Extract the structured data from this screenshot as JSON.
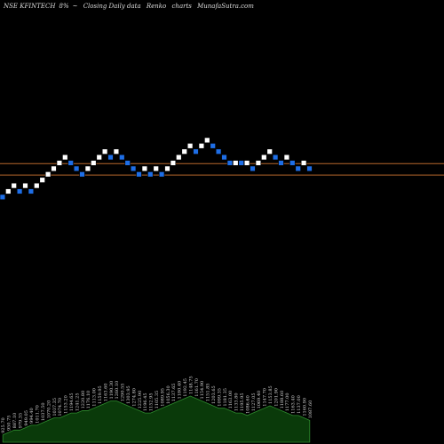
{
  "header": {
    "symbol": "NSE KFINTECH",
    "change": "8%",
    "arrow": "~",
    "series_label": "Closing Daily data",
    "chart_kind": "Renko",
    "suffix": "charts",
    "site": "MunafaSutra.com"
  },
  "colors": {
    "background": "#000000",
    "up_brick": "#ffffff",
    "down_brick": "#1e6ee6",
    "reference_line": "#b8682c",
    "volume_fill": "#0a3a0a",
    "volume_stroke": "#2e8b2e",
    "label_color": "#d2d2d2"
  },
  "chart_data": {
    "type": "renko",
    "bricks": [
      {
        "level": 0,
        "dir": "down"
      },
      {
        "level": 1,
        "dir": "up"
      },
      {
        "level": 2,
        "dir": "up"
      },
      {
        "level": 1,
        "dir": "down"
      },
      {
        "level": 2,
        "dir": "up"
      },
      {
        "level": 1,
        "dir": "down"
      },
      {
        "level": 2,
        "dir": "up"
      },
      {
        "level": 3,
        "dir": "up"
      },
      {
        "level": 4,
        "dir": "up"
      },
      {
        "level": 5,
        "dir": "up"
      },
      {
        "level": 6,
        "dir": "up"
      },
      {
        "level": 7,
        "dir": "up"
      },
      {
        "level": 6,
        "dir": "down"
      },
      {
        "level": 5,
        "dir": "down"
      },
      {
        "level": 4,
        "dir": "down"
      },
      {
        "level": 5,
        "dir": "up"
      },
      {
        "level": 6,
        "dir": "up"
      },
      {
        "level": 7,
        "dir": "up"
      },
      {
        "level": 8,
        "dir": "up"
      },
      {
        "level": 7,
        "dir": "down"
      },
      {
        "level": 8,
        "dir": "up"
      },
      {
        "level": 7,
        "dir": "down"
      },
      {
        "level": 6,
        "dir": "down"
      },
      {
        "level": 5,
        "dir": "down"
      },
      {
        "level": 4,
        "dir": "down"
      },
      {
        "level": 5,
        "dir": "up"
      },
      {
        "level": 4,
        "dir": "down"
      },
      {
        "level": 5,
        "dir": "up"
      },
      {
        "level": 4,
        "dir": "down"
      },
      {
        "level": 5,
        "dir": "up"
      },
      {
        "level": 6,
        "dir": "up"
      },
      {
        "level": 7,
        "dir": "up"
      },
      {
        "level": 8,
        "dir": "up"
      },
      {
        "level": 9,
        "dir": "up"
      },
      {
        "level": 8,
        "dir": "down"
      },
      {
        "level": 9,
        "dir": "up"
      },
      {
        "level": 10,
        "dir": "up"
      },
      {
        "level": 9,
        "dir": "down"
      },
      {
        "level": 8,
        "dir": "down"
      },
      {
        "level": 7,
        "dir": "down"
      },
      {
        "level": 6,
        "dir": "down"
      },
      {
        "level": 6,
        "dir": "up"
      },
      {
        "level": 6,
        "dir": "down"
      },
      {
        "level": 6,
        "dir": "up"
      },
      {
        "level": 5,
        "dir": "down"
      },
      {
        "level": 6,
        "dir": "up"
      },
      {
        "level": 7,
        "dir": "up"
      },
      {
        "level": 8,
        "dir": "up"
      },
      {
        "level": 7,
        "dir": "down"
      },
      {
        "level": 6,
        "dir": "down"
      },
      {
        "level": 7,
        "dir": "up"
      },
      {
        "level": 6,
        "dir": "down"
      },
      {
        "level": 5,
        "dir": "down"
      },
      {
        "level": 6,
        "dir": "up"
      },
      {
        "level": 5,
        "dir": "down"
      }
    ],
    "reference_levels": [
      6,
      4
    ],
    "volume": [
      3,
      4,
      5,
      5,
      6,
      7,
      7,
      8,
      9,
      10,
      10,
      11,
      12,
      12,
      13,
      13,
      14,
      15,
      16,
      17,
      17,
      16,
      15,
      14,
      13,
      12,
      12,
      13,
      14,
      15,
      16,
      17,
      18,
      19,
      18,
      17,
      16,
      15,
      14,
      14,
      13,
      12,
      12,
      11,
      12,
      13,
      14,
      15,
      14,
      13,
      12,
      11,
      11,
      10,
      9
    ],
    "tick_labels": [
      "925.70",
      "950.75",
      "887.10",
      "979.35",
      "949.05",
      "994.40",
      "1011.70",
      "1037.50",
      "1070.20",
      "1037.35",
      "1074.70",
      "1153.20",
      "1194.65",
      "1241.25",
      "1220.80",
      "1176.10",
      "1113.00",
      "1159.95",
      "1163.60",
      "1190.30",
      "1260.10",
      "1290.55",
      "1303.95",
      "1274.80",
      "1225.90",
      "1196.45",
      "1152.95",
      "1105.35",
      "1089.95",
      "1056.30",
      "1137.65",
      "1180.40",
      "1192.45",
      "1148.75",
      "1161.70",
      "1154.90",
      "1151.85",
      "1203.65",
      "1099.35",
      "1181.35",
      "1163.00",
      "1133.80",
      "1195.95",
      "1086.60",
      "1127.05",
      "1069.40",
      "1147.70",
      "1153.85",
      "1201.90",
      "1188.60",
      "1177.00",
      "1163.40",
      "1137.00",
      "1160.90",
      "1087.60"
    ]
  }
}
